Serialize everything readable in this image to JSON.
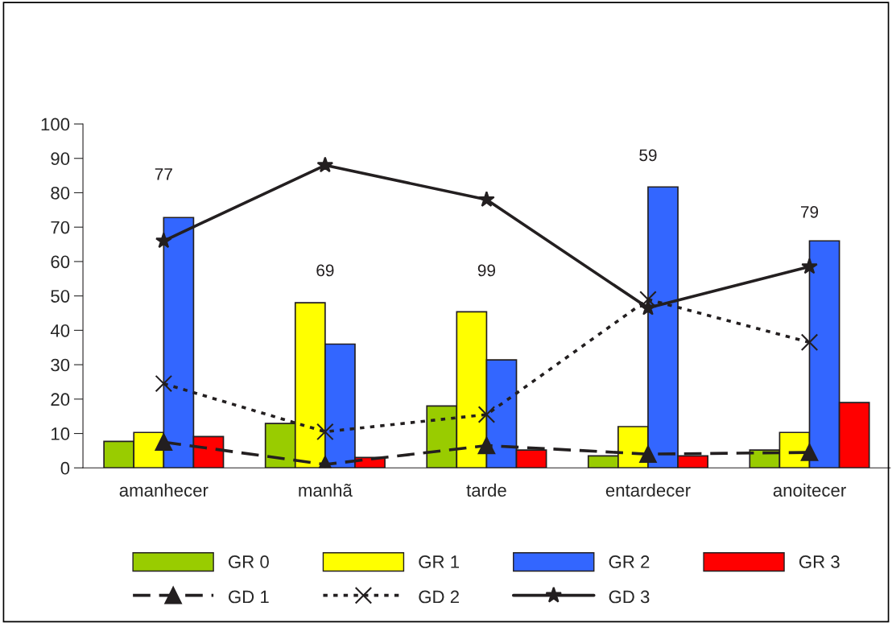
{
  "chart_data": {
    "type": "bar",
    "categories": [
      "amanhecer",
      "manhã",
      "tarde",
      "entardecer",
      "anoitecer"
    ],
    "series": [
      {
        "name": "GR 0",
        "color": "#99cc00",
        "values": [
          7.7,
          12.9,
          18,
          3.5,
          5.2
        ]
      },
      {
        "name": "GR 1",
        "color": "#ffff00",
        "values": [
          10.3,
          48,
          45.4,
          12,
          10.3
        ]
      },
      {
        "name": "GR 2",
        "color": "#3366ff",
        "values": [
          72.8,
          36,
          31.4,
          81.7,
          66
        ]
      },
      {
        "name": "GR 3",
        "color": "#ff0000",
        "values": [
          9.1,
          3,
          5.2,
          3.5,
          19
        ]
      },
      {
        "name": "GD 1",
        "type": "line",
        "color": "#231f20",
        "marker": "triangle",
        "line_style": "dashed",
        "values": [
          7.5,
          1,
          6.5,
          4,
          4.5
        ]
      },
      {
        "name": "GD 2",
        "type": "line",
        "color": "#231f20",
        "marker": "cross",
        "line_style": "dotted",
        "values": [
          24.5,
          10.5,
          15.5,
          49,
          36.5
        ]
      },
      {
        "name": "GD 3",
        "type": "line",
        "color": "#231f20",
        "marker": "star",
        "line_style": "solid",
        "values": [
          66,
          88,
          78,
          46.5,
          58.5
        ]
      }
    ],
    "annotations": [
      "77",
      "69",
      "99",
      "59",
      "79"
    ],
    "ylim": [
      0,
      100
    ],
    "yticks": [
      0,
      10,
      20,
      30,
      40,
      50,
      60,
      70,
      80,
      90,
      100
    ],
    "grid": false,
    "legend": "bottom"
  }
}
